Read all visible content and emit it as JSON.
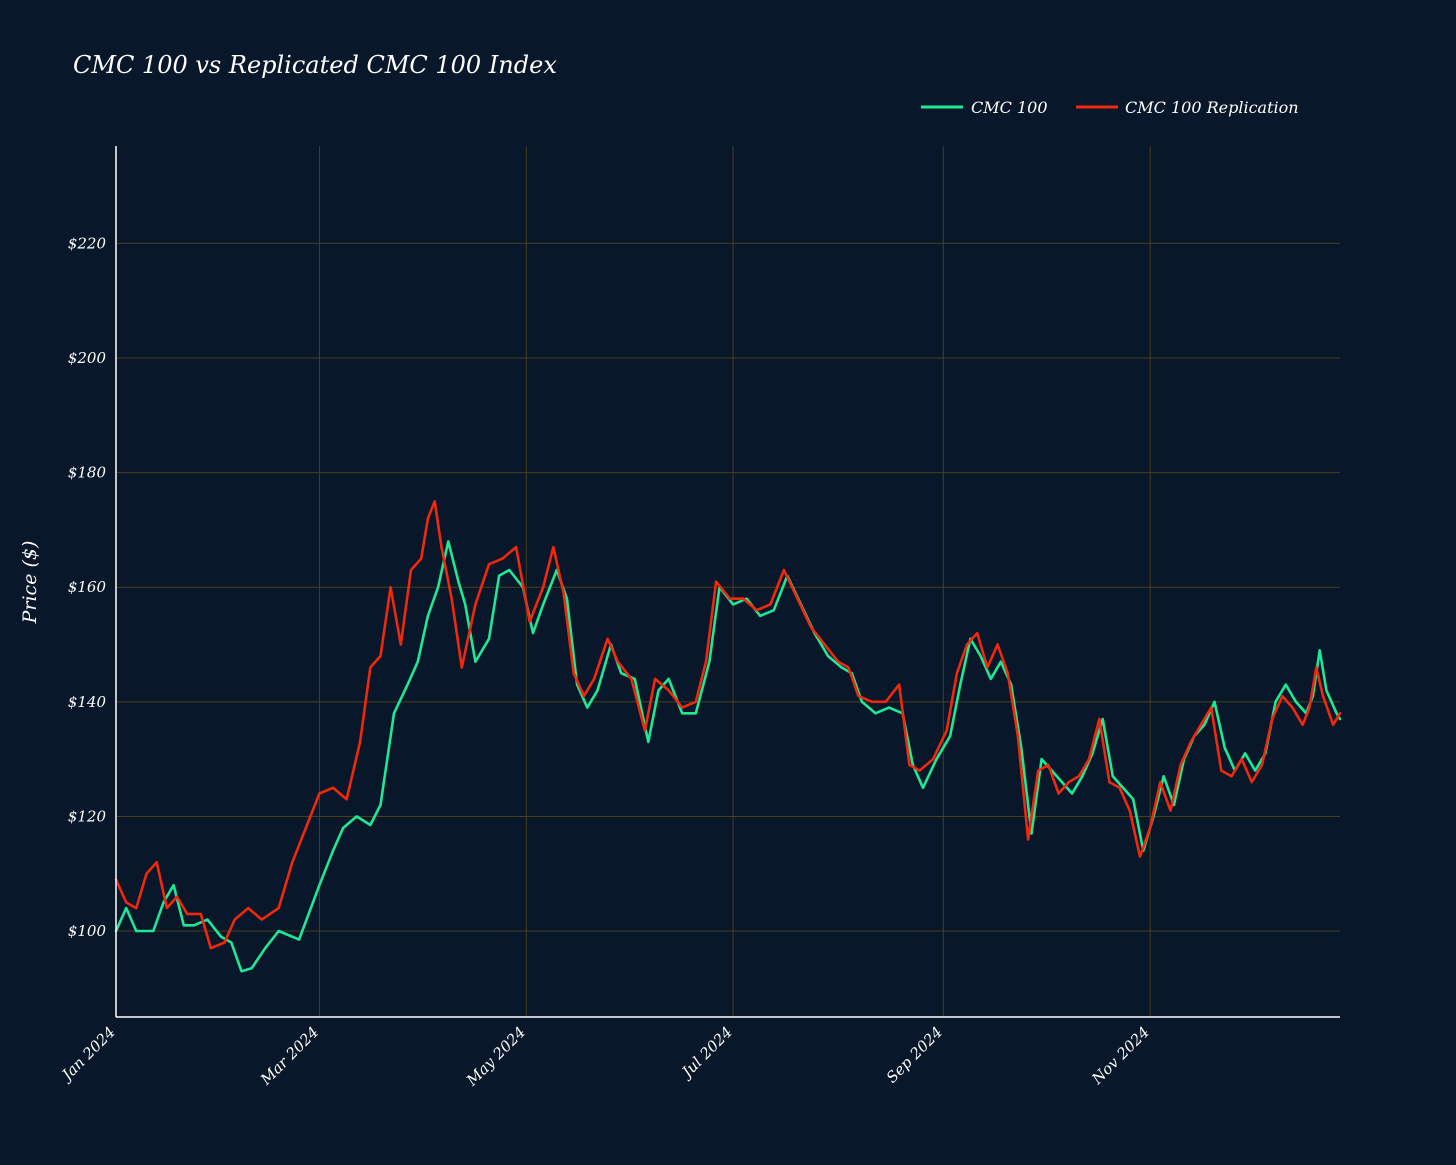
{
  "chart_data": {
    "type": "line",
    "title": "CMC 100 vs Replicated CMC 100 Index",
    "xlabel": "",
    "ylabel": "Price ($)",
    "x_range": [
      "2024-01-01",
      "2024-12-27"
    ],
    "ylim": [
      85,
      237
    ],
    "grid": true,
    "legend_position": "top-right",
    "x_tick_labels": [
      "Jan 2024",
      "Mar 2024",
      "May 2024",
      "Jul 2024",
      "Sep 2024",
      "Nov 2024"
    ],
    "x_tick_dates": [
      "2024-01-01",
      "2024-03-01",
      "2024-05-01",
      "2024-07-01",
      "2024-09-01",
      "2024-11-01"
    ],
    "y_tick_labels": [
      "$100",
      "$120",
      "$140",
      "$160",
      "$180",
      "$200",
      "$220"
    ],
    "y_tick_values": [
      100,
      120,
      140,
      160,
      180,
      200,
      220
    ],
    "series": [
      {
        "name": "CMC 100",
        "color": "#1ee896",
        "points": [
          [
            "2024-01-01",
            100
          ],
          [
            "2024-01-04",
            104
          ],
          [
            "2024-01-07",
            100
          ],
          [
            "2024-01-12",
            100
          ],
          [
            "2024-01-15",
            105
          ],
          [
            "2024-01-18",
            108
          ],
          [
            "2024-01-21",
            101
          ],
          [
            "2024-01-24",
            101
          ],
          [
            "2024-01-28",
            102
          ],
          [
            "2024-02-01",
            99
          ],
          [
            "2024-02-04",
            98
          ],
          [
            "2024-02-07",
            93
          ],
          [
            "2024-02-10",
            93.5
          ],
          [
            "2024-02-14",
            97
          ],
          [
            "2024-02-18",
            100
          ],
          [
            "2024-02-24",
            98.5
          ],
          [
            "2024-03-01",
            108
          ],
          [
            "2024-03-05",
            114
          ],
          [
            "2024-03-08",
            118
          ],
          [
            "2024-03-12",
            120
          ],
          [
            "2024-03-16",
            118.5
          ],
          [
            "2024-03-19",
            122
          ],
          [
            "2024-03-23",
            138
          ],
          [
            "2024-03-27",
            143
          ],
          [
            "2024-03-30",
            147
          ],
          [
            "2024-04-02",
            155
          ],
          [
            "2024-04-05",
            160
          ],
          [
            "2024-04-08",
            168
          ],
          [
            "2024-04-11",
            161
          ],
          [
            "2024-04-13",
            157
          ],
          [
            "2024-04-16",
            147
          ],
          [
            "2024-04-20",
            151
          ],
          [
            "2024-04-23",
            162
          ],
          [
            "2024-04-26",
            163
          ],
          [
            "2024-04-30",
            160
          ],
          [
            "2024-05-03",
            152
          ],
          [
            "2024-05-06",
            157
          ],
          [
            "2024-05-10",
            163
          ],
          [
            "2024-05-13",
            158
          ],
          [
            "2024-05-16",
            143
          ],
          [
            "2024-05-19",
            139
          ],
          [
            "2024-05-22",
            142
          ],
          [
            "2024-05-26",
            150
          ],
          [
            "2024-05-29",
            145
          ],
          [
            "2024-06-02",
            144
          ],
          [
            "2024-06-06",
            133
          ],
          [
            "2024-06-09",
            142
          ],
          [
            "2024-06-12",
            144
          ],
          [
            "2024-06-16",
            138
          ],
          [
            "2024-06-20",
            138
          ],
          [
            "2024-06-24",
            147
          ],
          [
            "2024-06-27",
            160
          ],
          [
            "2024-07-01",
            157
          ],
          [
            "2024-07-05",
            158
          ],
          [
            "2024-07-09",
            155
          ],
          [
            "2024-07-13",
            156
          ],
          [
            "2024-07-17",
            162
          ],
          [
            "2024-07-21",
            157
          ],
          [
            "2024-07-25",
            152
          ],
          [
            "2024-07-29",
            148
          ],
          [
            "2024-08-02",
            146
          ],
          [
            "2024-08-05",
            145
          ],
          [
            "2024-08-08",
            140
          ],
          [
            "2024-08-12",
            138
          ],
          [
            "2024-08-16",
            139
          ],
          [
            "2024-08-20",
            138
          ],
          [
            "2024-08-23",
            129
          ],
          [
            "2024-08-26",
            125
          ],
          [
            "2024-08-30",
            130
          ],
          [
            "2024-09-03",
            134
          ],
          [
            "2024-09-06",
            143
          ],
          [
            "2024-09-09",
            151
          ],
          [
            "2024-09-12",
            148
          ],
          [
            "2024-09-15",
            144
          ],
          [
            "2024-09-18",
            147
          ],
          [
            "2024-09-21",
            143
          ],
          [
            "2024-09-24",
            132
          ],
          [
            "2024-09-27",
            117
          ],
          [
            "2024-09-30",
            130
          ],
          [
            "2024-10-03",
            128
          ],
          [
            "2024-10-06",
            126
          ],
          [
            "2024-10-09",
            124
          ],
          [
            "2024-10-12",
            127
          ],
          [
            "2024-10-15",
            131
          ],
          [
            "2024-10-18",
            137
          ],
          [
            "2024-10-21",
            127
          ],
          [
            "2024-10-24",
            125
          ],
          [
            "2024-10-27",
            123
          ],
          [
            "2024-10-30",
            114
          ],
          [
            "2024-11-02",
            120
          ],
          [
            "2024-11-05",
            127
          ],
          [
            "2024-11-08",
            122
          ],
          [
            "2024-11-11",
            130
          ],
          [
            "2024-11-14",
            134
          ],
          [
            "2024-11-17",
            136
          ],
          [
            "2024-11-20",
            140
          ],
          [
            "2024-11-23",
            132
          ],
          [
            "2024-11-26",
            128
          ],
          [
            "2024-11-29",
            131
          ],
          [
            "2024-12-02",
            128
          ],
          [
            "2024-12-05",
            131
          ],
          [
            "2024-12-08",
            140
          ],
          [
            "2024-12-11",
            143
          ],
          [
            "2024-12-14",
            140
          ],
          [
            "2024-12-17",
            138
          ],
          [
            "2024-12-19",
            141
          ],
          [
            "2024-12-21",
            149
          ],
          [
            "2024-12-23",
            142
          ],
          [
            "2024-12-26",
            138
          ],
          [
            "2024-12-27",
            137
          ]
        ]
      },
      {
        "name": "CMC 100 Replication",
        "color": "#f0280c",
        "points": [
          [
            "2024-01-01",
            109
          ],
          [
            "2024-01-04",
            105
          ],
          [
            "2024-01-07",
            104
          ],
          [
            "2024-01-10",
            110
          ],
          [
            "2024-01-13",
            112
          ],
          [
            "2024-01-16",
            104
          ],
          [
            "2024-01-19",
            106
          ],
          [
            "2024-01-22",
            103
          ],
          [
            "2024-01-26",
            103
          ],
          [
            "2024-01-29",
            97
          ],
          [
            "2024-02-02",
            98
          ],
          [
            "2024-02-05",
            102
          ],
          [
            "2024-02-09",
            104
          ],
          [
            "2024-02-13",
            102
          ],
          [
            "2024-02-18",
            104
          ],
          [
            "2024-02-22",
            112
          ],
          [
            "2024-02-26",
            118
          ],
          [
            "2024-03-01",
            124
          ],
          [
            "2024-03-05",
            125
          ],
          [
            "2024-03-09",
            123
          ],
          [
            "2024-03-13",
            133
          ],
          [
            "2024-03-16",
            146
          ],
          [
            "2024-03-19",
            148
          ],
          [
            "2024-03-22",
            160
          ],
          [
            "2024-03-25",
            150
          ],
          [
            "2024-03-28",
            163
          ],
          [
            "2024-03-31",
            165
          ],
          [
            "2024-04-02",
            172
          ],
          [
            "2024-04-04",
            175
          ],
          [
            "2024-04-06",
            167
          ],
          [
            "2024-04-09",
            158
          ],
          [
            "2024-04-12",
            146
          ],
          [
            "2024-04-16",
            157
          ],
          [
            "2024-04-20",
            164
          ],
          [
            "2024-04-24",
            165
          ],
          [
            "2024-04-28",
            167
          ],
          [
            "2024-05-02",
            154
          ],
          [
            "2024-05-06",
            160
          ],
          [
            "2024-05-09",
            167
          ],
          [
            "2024-05-12",
            159
          ],
          [
            "2024-05-15",
            145
          ],
          [
            "2024-05-18",
            141
          ],
          [
            "2024-05-21",
            144
          ],
          [
            "2024-05-25",
            151
          ],
          [
            "2024-05-28",
            147
          ],
          [
            "2024-06-01",
            144
          ],
          [
            "2024-06-05",
            135
          ],
          [
            "2024-06-08",
            144
          ],
          [
            "2024-06-12",
            142
          ],
          [
            "2024-06-16",
            139
          ],
          [
            "2024-06-20",
            140
          ],
          [
            "2024-06-23",
            147
          ],
          [
            "2024-06-26",
            161
          ],
          [
            "2024-06-30",
            158
          ],
          [
            "2024-07-04",
            158
          ],
          [
            "2024-07-08",
            156
          ],
          [
            "2024-07-12",
            157
          ],
          [
            "2024-07-16",
            163
          ],
          [
            "2024-07-20",
            158
          ],
          [
            "2024-07-24",
            153
          ],
          [
            "2024-07-28",
            150
          ],
          [
            "2024-08-01",
            147
          ],
          [
            "2024-08-04",
            146
          ],
          [
            "2024-08-07",
            141
          ],
          [
            "2024-08-11",
            140
          ],
          [
            "2024-08-15",
            140
          ],
          [
            "2024-08-19",
            143
          ],
          [
            "2024-08-22",
            129
          ],
          [
            "2024-08-25",
            128
          ],
          [
            "2024-08-29",
            130
          ],
          [
            "2024-09-02",
            135
          ],
          [
            "2024-09-05",
            145
          ],
          [
            "2024-09-08",
            150
          ],
          [
            "2024-09-11",
            152
          ],
          [
            "2024-09-14",
            146
          ],
          [
            "2024-09-17",
            150
          ],
          [
            "2024-09-20",
            145
          ],
          [
            "2024-09-23",
            134
          ],
          [
            "2024-09-26",
            116
          ],
          [
            "2024-09-29",
            128
          ],
          [
            "2024-10-02",
            129
          ],
          [
            "2024-10-05",
            124
          ],
          [
            "2024-10-08",
            126
          ],
          [
            "2024-10-11",
            127
          ],
          [
            "2024-10-14",
            130
          ],
          [
            "2024-10-17",
            137
          ],
          [
            "2024-10-20",
            126
          ],
          [
            "2024-10-23",
            125
          ],
          [
            "2024-10-26",
            121
          ],
          [
            "2024-10-29",
            113
          ],
          [
            "2024-11-01",
            118
          ],
          [
            "2024-11-04",
            126
          ],
          [
            "2024-11-07",
            121
          ],
          [
            "2024-11-10",
            129
          ],
          [
            "2024-11-13",
            133
          ],
          [
            "2024-11-16",
            136
          ],
          [
            "2024-11-19",
            139
          ],
          [
            "2024-11-22",
            128
          ],
          [
            "2024-11-25",
            127
          ],
          [
            "2024-11-28",
            130
          ],
          [
            "2024-12-01",
            126
          ],
          [
            "2024-12-04",
            129
          ],
          [
            "2024-12-07",
            137
          ],
          [
            "2024-12-10",
            141
          ],
          [
            "2024-12-13",
            139
          ],
          [
            "2024-12-16",
            136
          ],
          [
            "2024-12-18",
            139
          ],
          [
            "2024-12-20",
            146
          ],
          [
            "2024-12-22",
            141
          ],
          [
            "2024-12-25",
            136
          ],
          [
            "2024-12-27",
            138
          ]
        ]
      }
    ]
  }
}
